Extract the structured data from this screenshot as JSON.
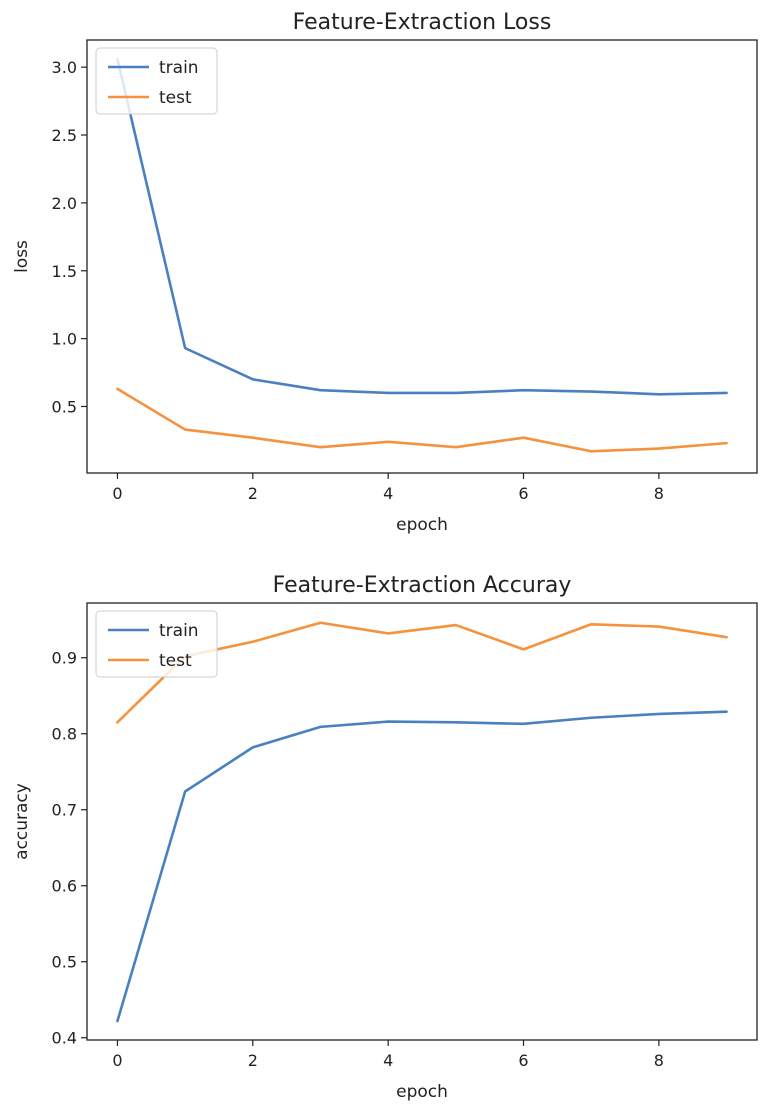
{
  "chart_data": [
    {
      "type": "line",
      "title": "Feature-Extraction Loss",
      "xlabel": "epoch",
      "ylabel": "loss",
      "x": [
        0,
        1,
        2,
        3,
        4,
        5,
        6,
        7,
        8,
        9
      ],
      "xticks": [
        0,
        2,
        4,
        6,
        8
      ],
      "xtick_labels": [
        "0",
        "2",
        "4",
        "6",
        "8"
      ],
      "yticks": [
        0.5,
        1.0,
        1.5,
        2.0,
        2.5,
        3.0
      ],
      "ytick_labels": [
        "0.5",
        "1.0",
        "1.5",
        "2.0",
        "2.5",
        "3.0"
      ],
      "xlim": [
        -0.45,
        9.45
      ],
      "ylim": [
        0.01,
        3.2
      ],
      "grid": false,
      "legend_position": "upper-left",
      "series": [
        {
          "name": "train",
          "color": "#4a80c0",
          "values": [
            3.06,
            0.93,
            0.7,
            0.62,
            0.6,
            0.6,
            0.62,
            0.61,
            0.59,
            0.6
          ]
        },
        {
          "name": "test",
          "color": "#f5923e",
          "values": [
            0.63,
            0.33,
            0.27,
            0.2,
            0.24,
            0.2,
            0.27,
            0.17,
            0.19,
            0.23
          ]
        }
      ]
    },
    {
      "type": "line",
      "title": "Feature-Extraction Accuray",
      "xlabel": "epoch",
      "ylabel": "accuracy",
      "x": [
        0,
        1,
        2,
        3,
        4,
        5,
        6,
        7,
        8,
        9
      ],
      "xticks": [
        0,
        2,
        4,
        6,
        8
      ],
      "xtick_labels": [
        "0",
        "2",
        "4",
        "6",
        "8"
      ],
      "yticks": [
        0.4,
        0.5,
        0.6,
        0.7,
        0.8,
        0.9
      ],
      "ytick_labels": [
        "0.4",
        "0.5",
        "0.6",
        "0.7",
        "0.8",
        "0.9"
      ],
      "xlim": [
        -0.45,
        9.45
      ],
      "ylim": [
        0.397,
        0.972
      ],
      "grid": false,
      "legend_position": "upper-left",
      "series": [
        {
          "name": "train",
          "color": "#4a80c0",
          "values": [
            0.422,
            0.724,
            0.782,
            0.809,
            0.816,
            0.815,
            0.813,
            0.821,
            0.826,
            0.829
          ]
        },
        {
          "name": "test",
          "color": "#f5923e",
          "values": [
            0.815,
            0.902,
            0.921,
            0.946,
            0.932,
            0.943,
            0.911,
            0.944,
            0.941,
            0.927
          ]
        }
      ]
    }
  ]
}
